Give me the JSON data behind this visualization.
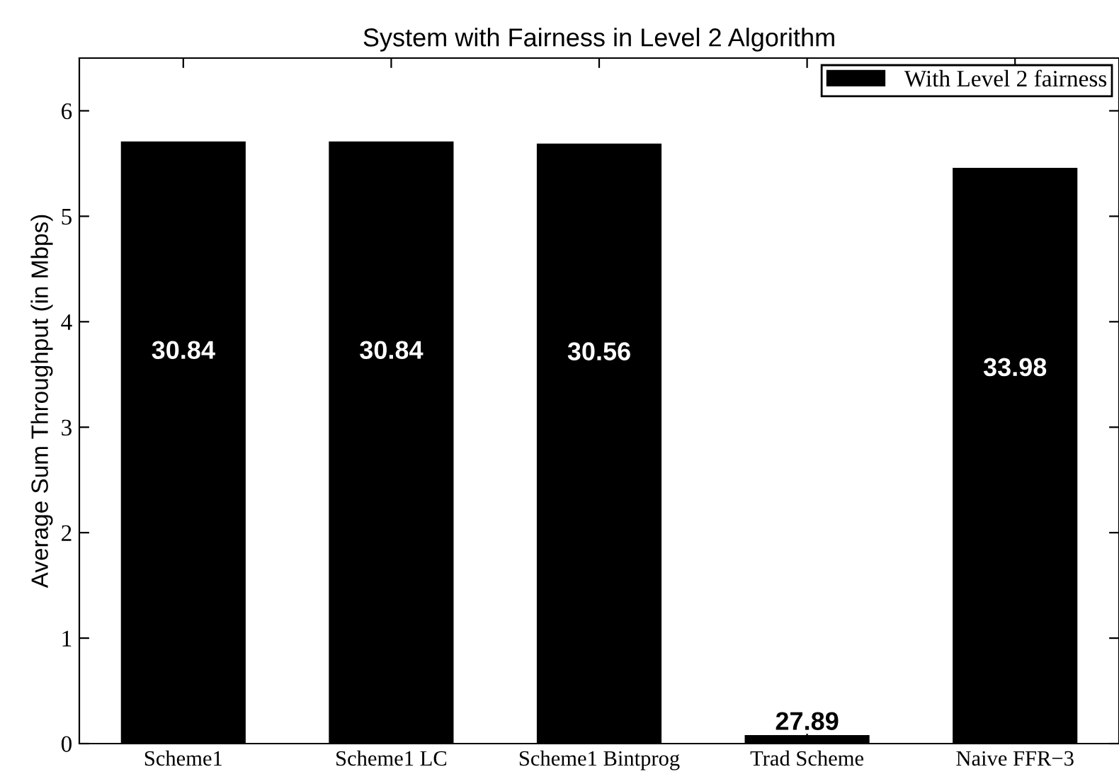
{
  "chart_data": {
    "type": "bar",
    "title": "System with Fairness in Level 2 Algorithm",
    "ylabel": "Average Sum Throughput (in Mbps)",
    "categories": [
      "Scheme1",
      "Scheme1 LC",
      "Scheme1 Bintprog",
      "Trad Scheme",
      "Naive FFR−3"
    ],
    "series": [
      {
        "name": "With Level 2 fairness",
        "color": "#000000",
        "values": [
          5.71,
          5.71,
          5.69,
          0.08,
          5.46
        ]
      }
    ],
    "ylim": [
      0,
      6.5
    ],
    "yticks": [
      0,
      1,
      2,
      3,
      4,
      5,
      6
    ],
    "grid": false,
    "legend": "top right",
    "annotations": [
      "30.84",
      "30.84",
      "30.56",
      "27.89",
      "33.98"
    ]
  }
}
